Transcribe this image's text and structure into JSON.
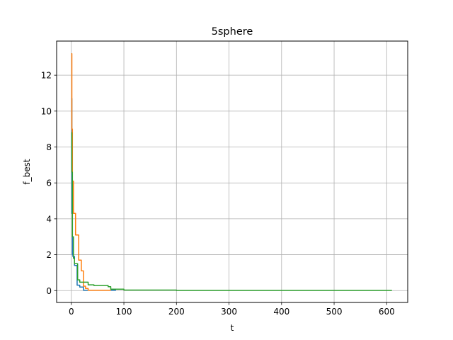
{
  "chart_data": {
    "type": "line",
    "title": "5sphere",
    "xlabel": "t",
    "ylabel": "f_best",
    "xlim": [
      -28,
      640
    ],
    "ylim": [
      -0.66,
      13.9
    ],
    "xticks": [
      0,
      100,
      200,
      300,
      400,
      500,
      600
    ],
    "yticks": [
      0,
      2,
      4,
      6,
      8,
      10,
      12
    ],
    "grid": true,
    "legend": "none",
    "series": [
      {
        "color": "#1f77b4",
        "x": [
          0,
          1,
          1,
          2,
          2,
          3,
          3,
          6,
          6,
          11,
          11,
          16,
          16,
          23,
          23,
          85
        ],
        "y": [
          10.7,
          10.7,
          4.3,
          4.3,
          2.0,
          2.0,
          1.9,
          1.9,
          1.4,
          1.4,
          0.3,
          0.3,
          0.2,
          0.2,
          0.02,
          0.02
        ]
      },
      {
        "color": "#ff7f0e",
        "x": [
          0,
          1,
          1,
          2,
          2,
          4,
          4,
          8,
          8,
          14,
          14,
          19,
          19,
          23,
          23,
          27,
          27,
          32,
          32,
          75
        ],
        "y": [
          13.2,
          13.2,
          9.0,
          9.0,
          6.1,
          6.1,
          4.3,
          4.3,
          3.1,
          3.1,
          1.7,
          1.7,
          1.1,
          1.1,
          0.25,
          0.25,
          0.12,
          0.12,
          0.02,
          0.02
        ]
      },
      {
        "color": "#2ca02c",
        "x": [
          0,
          1,
          1,
          2,
          2,
          4,
          4,
          6,
          6,
          12,
          12,
          16,
          16,
          32,
          32,
          43,
          43,
          70,
          70,
          75,
          75,
          100,
          100,
          200,
          200,
          610
        ],
        "y": [
          8.8,
          8.8,
          6.6,
          6.6,
          3.0,
          3.0,
          1.8,
          1.8,
          1.5,
          1.5,
          0.6,
          0.6,
          0.47,
          0.47,
          0.32,
          0.32,
          0.28,
          0.28,
          0.22,
          0.22,
          0.08,
          0.08,
          0.03,
          0.03,
          0.01,
          0.01
        ]
      }
    ]
  }
}
